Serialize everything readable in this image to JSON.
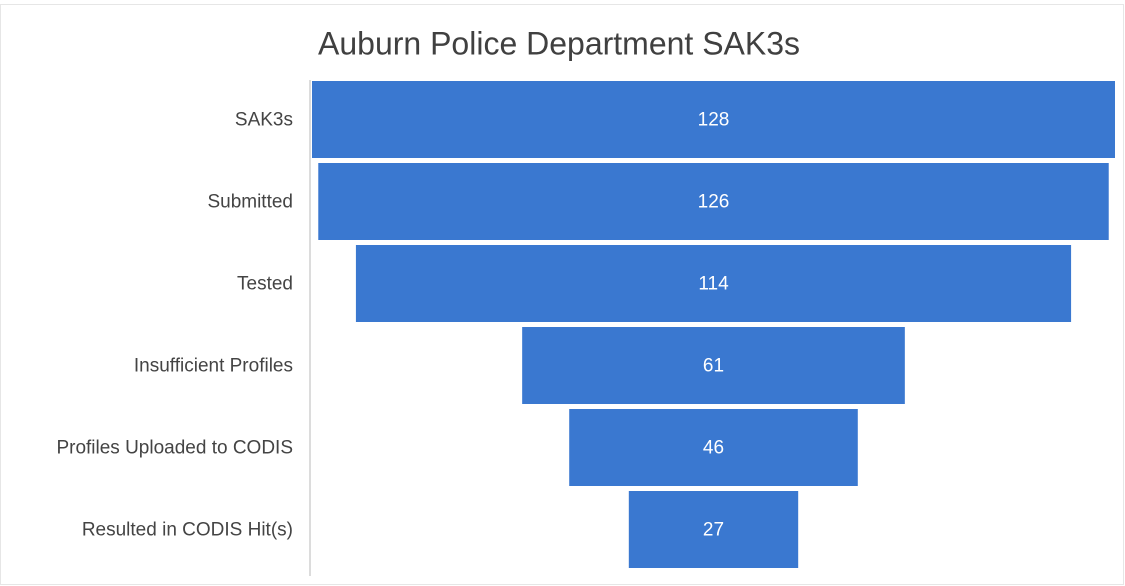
{
  "chart_data": {
    "type": "funnel",
    "title": "Auburn Police Department SAK3s",
    "categories": [
      "SAK3s",
      "Submitted",
      "Tested",
      "Insufficient Profiles",
      "Profiles Uploaded to CODIS",
      "Resulted in CODIS Hit(s)"
    ],
    "values": [
      128,
      126,
      114,
      61,
      46,
      27
    ],
    "color": "#3a78d0"
  }
}
